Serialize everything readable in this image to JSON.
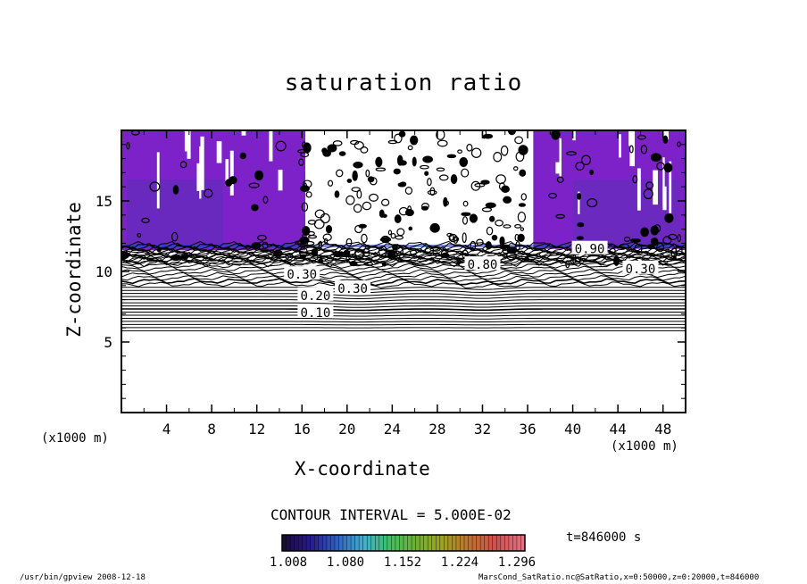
{
  "chart_data": {
    "type": "contour",
    "title": "saturation ratio",
    "xlabel": "X-coordinate",
    "ylabel": "Z-coordinate",
    "x_unit": "(x1000 m)",
    "xlim": [
      0,
      50
    ],
    "ylim": [
      0,
      20
    ],
    "x_ticks": [
      "4",
      "8",
      "12",
      "16",
      "20",
      "24",
      "28",
      "32",
      "36",
      "40",
      "44",
      "48"
    ],
    "y_ticks": [
      "5",
      "10",
      "15"
    ],
    "contour_interval_text": "CONTOUR INTERVAL = 5.000E-02",
    "contour_labels": [
      {
        "text": "0.10",
        "x": 17.2,
        "z": 7.1
      },
      {
        "text": "0.20",
        "x": 17.2,
        "z": 8.3
      },
      {
        "text": "0.30",
        "x": 20.5,
        "z": 8.8
      },
      {
        "text": "0.30",
        "x": 46.0,
        "z": 10.2
      },
      {
        "text": "0.30",
        "x": 16.0,
        "z": 9.8
      },
      {
        "text": "0.80",
        "x": 32.0,
        "z": 10.5
      },
      {
        "text": "0.90",
        "x": 41.5,
        "z": 11.6
      }
    ],
    "shaded_range": [
      1.008,
      1.296
    ],
    "colorbar_tick_labels": [
      "1.008",
      "1.080",
      "1.152",
      "1.224",
      "1.296"
    ],
    "colorbar_colors": [
      "#1a0a3a",
      "#2a1a8c",
      "#3060c0",
      "#40b0d0",
      "#40c060",
      "#70b030",
      "#a0a020",
      "#c07030",
      "#d05050",
      "#e07080"
    ],
    "shade_color": "#7d22c8",
    "time_label": "t=846000 s",
    "footer_left": "/usr/bin/gpview  2008-12-18",
    "footer_right": "MarsCond_SatRatio.nc@SatRatio,x=0:50000,z=0:20000,t=846000"
  }
}
